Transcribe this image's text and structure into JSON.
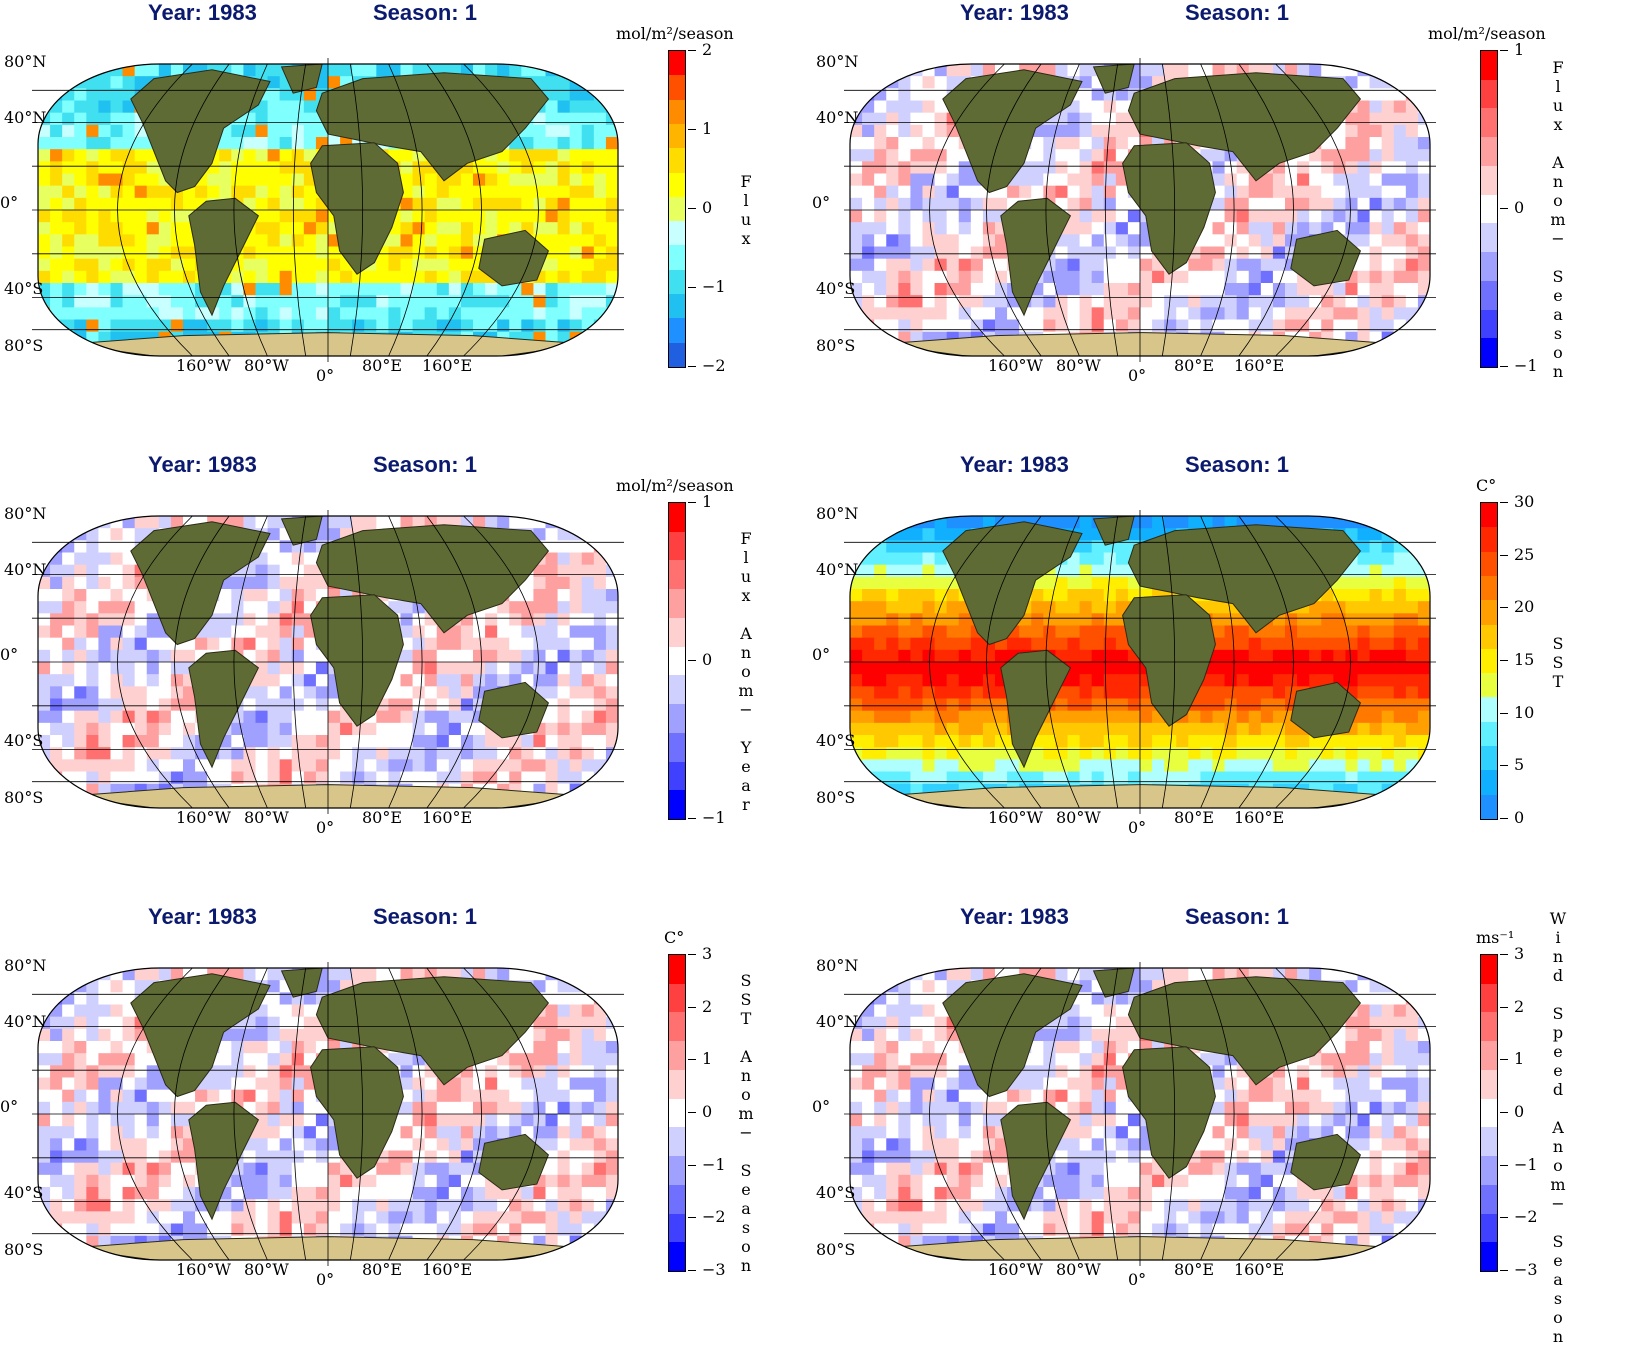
{
  "panels": [
    {
      "title_year": "Year: 1983",
      "title_season": "Season: 1",
      "unit": "mol/m²/season",
      "cbar_labels": [
        "2",
        "1",
        "0",
        "−1",
        "−2"
      ],
      "cbar_colors": [
        "#ff0000",
        "#ff5000",
        "#ff8c00",
        "#ffb400",
        "#ffdc00",
        "#ffff00",
        "#e8ff60",
        "#c8ffff",
        "#80ffff",
        "#40e0f0",
        "#20c0f0",
        "#1e90ff",
        "#2060e0"
      ],
      "var_title": "Flux",
      "map_style": "flux"
    },
    {
      "title_year": "Year: 1983",
      "title_season": "Season: 1",
      "unit": "mol/m²/season",
      "cbar_labels": [
        "1",
        "0",
        "−1"
      ],
      "cbar_colors": [
        "#ff0000",
        "#ff4040",
        "#ff7070",
        "#ffa0a0",
        "#ffd0d0",
        "#ffffff",
        "#d0d0ff",
        "#a0a0ff",
        "#7070ff",
        "#4040ff",
        "#0000ff"
      ],
      "var_title": "Flux Anom− Season",
      "map_style": "anom"
    },
    {
      "title_year": "Year: 1983",
      "title_season": "Season: 1",
      "unit": "mol/m²/season",
      "cbar_labels": [
        "1",
        "0",
        "−1"
      ],
      "cbar_colors": [
        "#ff0000",
        "#ff4040",
        "#ff7070",
        "#ffa0a0",
        "#ffd0d0",
        "#ffffff",
        "#d0d0ff",
        "#a0a0ff",
        "#7070ff",
        "#4040ff",
        "#0000ff"
      ],
      "var_title": "Flux Anom− Year",
      "map_style": "anom"
    },
    {
      "title_year": "Year: 1983",
      "title_season": "Season: 1",
      "unit": "C°",
      "cbar_labels": [
        "30",
        "25",
        "20",
        "15",
        "10",
        "5",
        "0"
      ],
      "cbar_colors": [
        "#ff0000",
        "#ff2800",
        "#ff5000",
        "#ff7800",
        "#ffa000",
        "#ffc800",
        "#ffee00",
        "#e8ff40",
        "#b0ffff",
        "#60f0ff",
        "#30d0ff",
        "#10b0ff",
        "#1e90ff"
      ],
      "var_title": "SST",
      "map_style": "sst"
    },
    {
      "title_year": "Year: 1983",
      "title_season": "Season: 1",
      "unit": "C°",
      "cbar_labels": [
        "3",
        "2",
        "1",
        "0",
        "−1",
        "−2",
        "−3"
      ],
      "cbar_colors": [
        "#ff0000",
        "#ff4040",
        "#ff7070",
        "#ffa0a0",
        "#ffd0d0",
        "#ffffff",
        "#d0d0ff",
        "#a0a0ff",
        "#7070ff",
        "#4040ff",
        "#0000ff"
      ],
      "var_title": "SST Anom− Season",
      "map_style": "anom"
    },
    {
      "title_year": "Year: 1983",
      "title_season": "Season: 1",
      "unit": "ms⁻¹",
      "cbar_labels": [
        "3",
        "2",
        "1",
        "0",
        "−1",
        "−2",
        "−3"
      ],
      "cbar_colors": [
        "#ff0000",
        "#ff4040",
        "#ff7070",
        "#ffa0a0",
        "#ffd0d0",
        "#ffffff",
        "#d0d0ff",
        "#a0a0ff",
        "#7070ff",
        "#4040ff",
        "#0000ff"
      ],
      "var_title": "Wind Speed Anom− Season",
      "map_style": "anom"
    }
  ],
  "lat_labels": [
    "80°N",
    "40°N",
    "0°",
    "40°S",
    "80°S"
  ],
  "lon_labels": [
    "160°W",
    "80°W",
    "0°",
    "80°E",
    "160°E"
  ]
}
